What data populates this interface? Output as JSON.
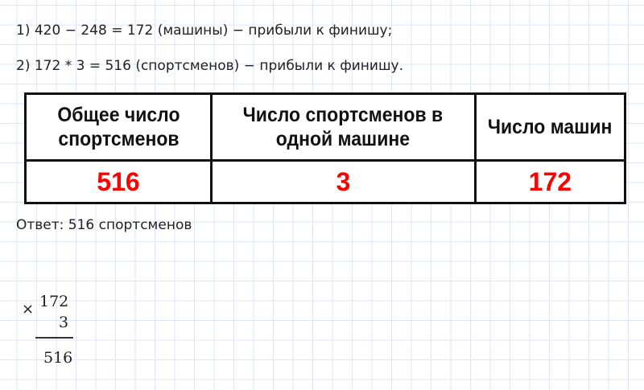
{
  "steps": [
    "1) 420 − 248 = 172 (машины) − прибыли к финишу;",
    "2) 172 * 3 = 516 (спортсменов) − прибыли к финишу."
  ],
  "table": {
    "headers": [
      "Общее число спортсменов",
      "Число спортсменов в одной машине",
      "Число машин"
    ],
    "values": [
      "516",
      "3",
      "172"
    ],
    "value_color": "#ff0000"
  },
  "answer": "Ответ: 516 спортсменов",
  "column_calc": {
    "operator": "×",
    "multiplicand": "172",
    "multiplier": "3",
    "result": "516"
  }
}
